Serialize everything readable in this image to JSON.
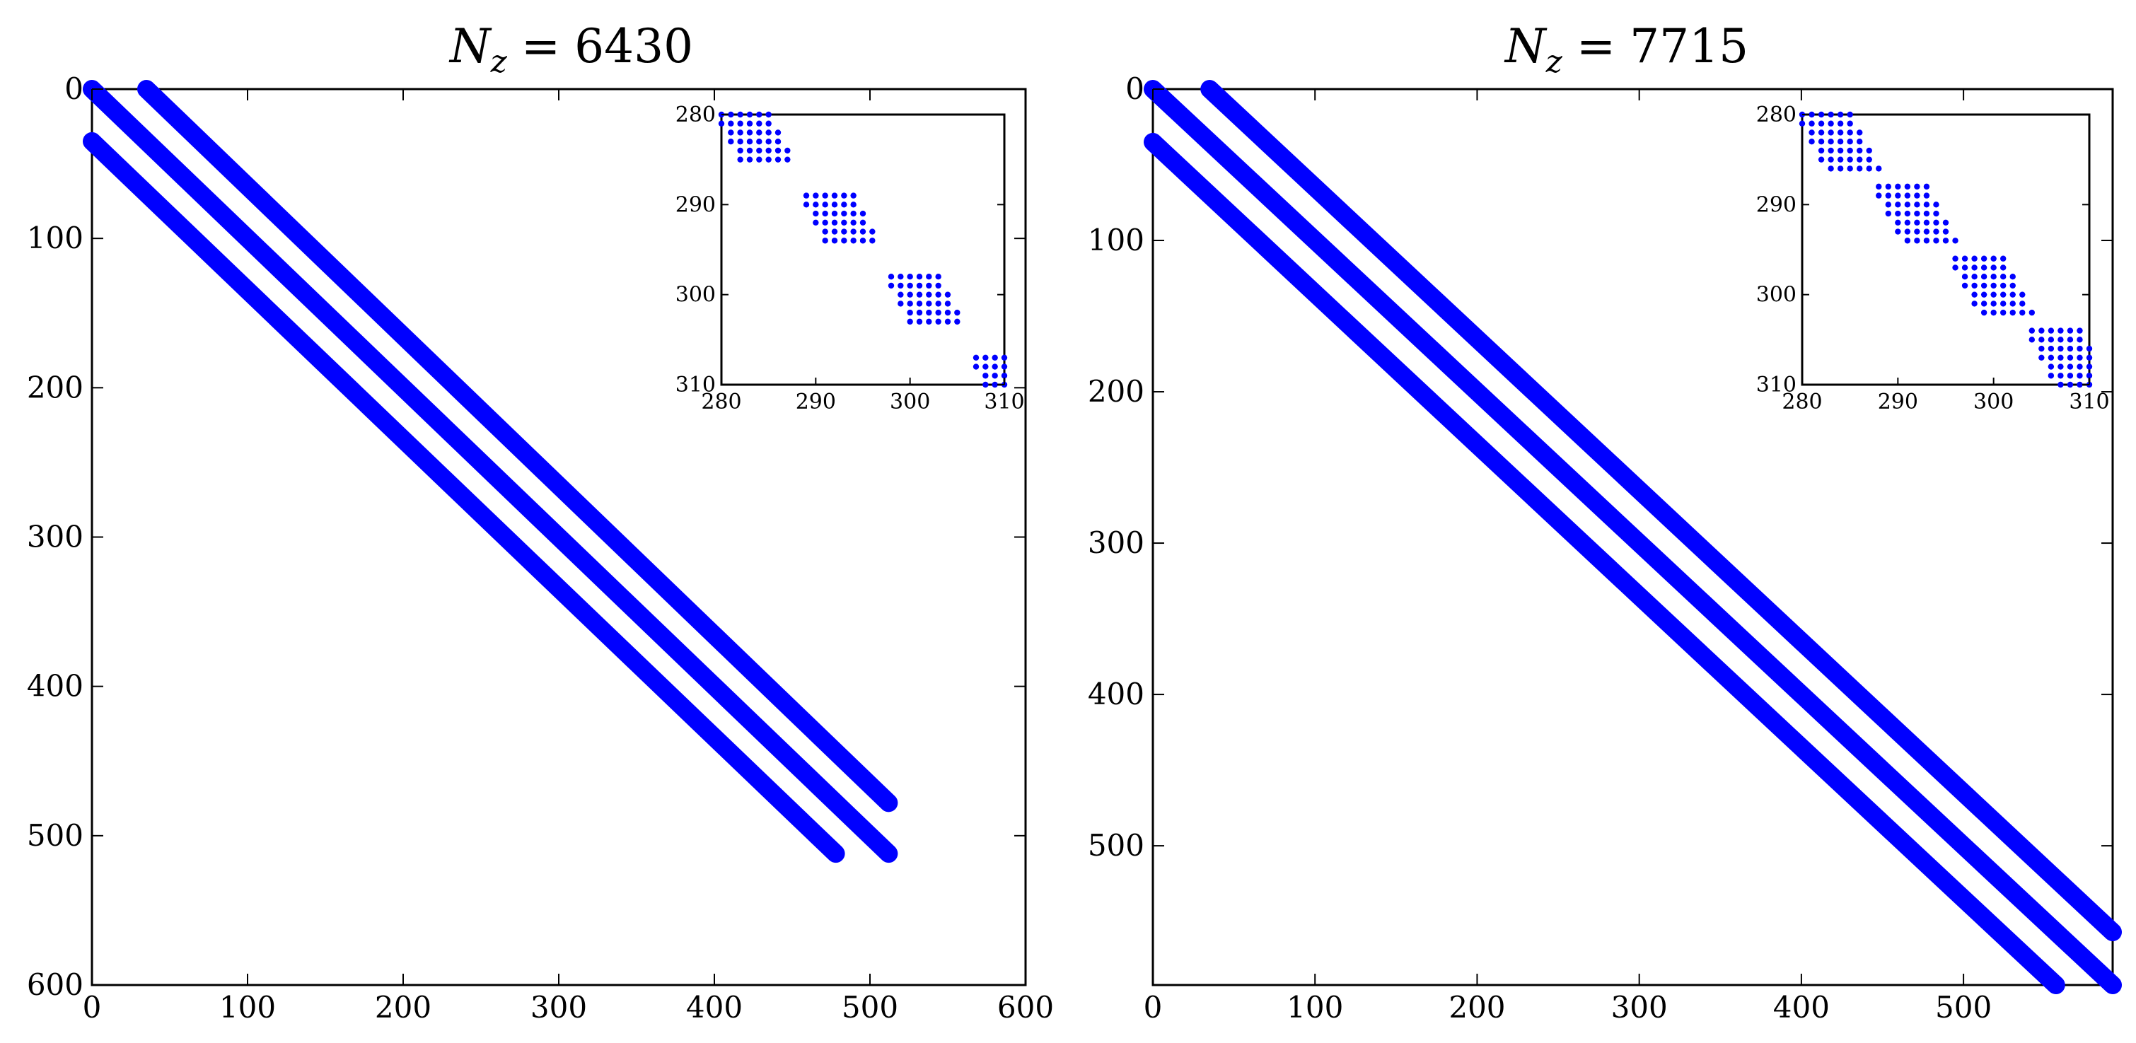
{
  "figure": {
    "accent_color": "#0000ff",
    "axis_color": "#000000",
    "background": "#ffffff"
  },
  "chart_data": [
    {
      "type": "scatter",
      "subtype": "sparsity-pattern",
      "title": "N_z = 6430",
      "title_parts": {
        "symbol": "N",
        "subscript": "z",
        "relation": "=",
        "value": "6430"
      },
      "xlabel": "",
      "ylabel": "",
      "xlim": [
        0,
        600
      ],
      "ylim": [
        0,
        600
      ],
      "y_axis_reversed": true,
      "grid": false,
      "xticks": [
        0,
        100,
        200,
        300,
        400,
        500,
        600
      ],
      "yticks": [
        0,
        100,
        200,
        300,
        400,
        500,
        600
      ],
      "xtick_labels": [
        "0",
        "100",
        "200",
        "300",
        "400",
        "500",
        "600"
      ],
      "ytick_labels": [
        "0",
        "100",
        "200",
        "300",
        "400",
        "500",
        "600"
      ],
      "series": [
        {
          "values": [
            [
              0,
              35
            ],
            [
              478,
              512
            ]
          ]
        },
        {
          "values": [
            [
              0,
              0
            ],
            [
              512,
              512
            ]
          ]
        },
        {
          "values": [
            [
              35,
              0
            ],
            [
              512,
              478
            ]
          ]
        }
      ],
      "inset": {
        "xlim": [
          280,
          310
        ],
        "ylim": [
          280,
          310
        ],
        "y_axis_reversed": true,
        "xticks": [
          280,
          290,
          300,
          310
        ],
        "yticks": [
          280,
          290,
          300,
          310
        ],
        "xtick_labels": [
          "280",
          "290",
          "300",
          "310"
        ],
        "ytick_labels": [
          "280",
          "290",
          "300",
          "310"
        ],
        "block_size": [
          6,
          3
        ],
        "block_starts": [
          280,
          289,
          298,
          307
        ]
      }
    },
    {
      "type": "scatter",
      "subtype": "sparsity-pattern",
      "title": "N_z = 7715",
      "title_parts": {
        "symbol": "N",
        "subscript": "z",
        "relation": "=",
        "value": "7715"
      },
      "xlabel": "",
      "ylabel": "",
      "xlim": [
        0,
        592
      ],
      "ylim": [
        0,
        592
      ],
      "y_axis_reversed": true,
      "grid": false,
      "xticks": [
        0,
        100,
        200,
        300,
        400,
        500
      ],
      "yticks": [
        0,
        100,
        200,
        300,
        400,
        500
      ],
      "xtick_labels": [
        "0",
        "100",
        "200",
        "300",
        "400",
        "500"
      ],
      "ytick_labels": [
        "0",
        "100",
        "200",
        "300",
        "400",
        "500"
      ],
      "series": [
        {
          "values": [
            [
              0,
              35
            ],
            [
              557,
              592
            ]
          ]
        },
        {
          "values": [
            [
              0,
              0
            ],
            [
              592,
              592
            ]
          ]
        },
        {
          "values": [
            [
              35,
              0
            ],
            [
              592,
              557
            ]
          ]
        }
      ],
      "inset": {
        "xlim": [
          280,
          310
        ],
        "ylim": [
          280,
          310
        ],
        "y_axis_reversed": true,
        "xticks": [
          280,
          290,
          300,
          310
        ],
        "yticks": [
          280,
          290,
          300,
          310
        ],
        "xtick_labels": [
          "280",
          "290",
          "300",
          "310"
        ],
        "ytick_labels": [
          "280",
          "290",
          "300",
          "310"
        ],
        "block_size": [
          7,
          3
        ],
        "block_starts": [
          280,
          288,
          296,
          304
        ]
      }
    }
  ]
}
